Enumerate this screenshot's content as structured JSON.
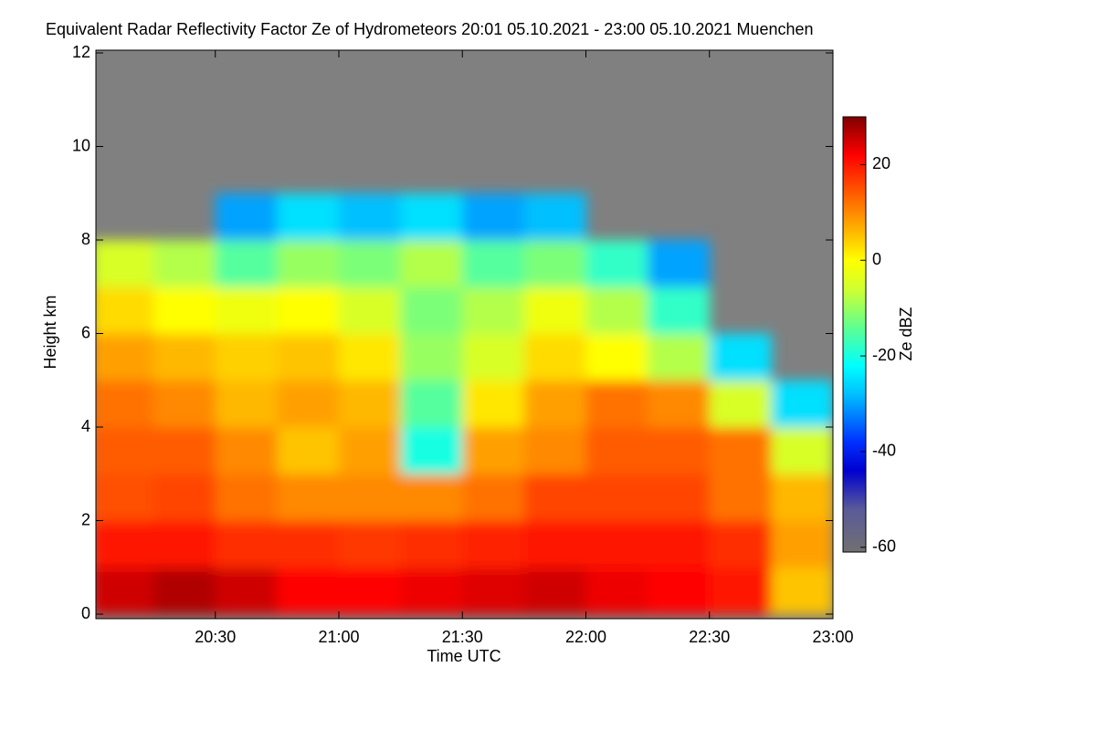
{
  "chart_data": {
    "type": "heatmap",
    "title": "Equivalent Radar Reflectivity Factor Ze of Hydrometeors   20:01 05.10.2021 - 23:00 05.10.2021 Muenchen",
    "x_label": "Time UTC",
    "y_label": "Height km",
    "colorbar_label": "Ze dBZ",
    "xlim": [
      20.0167,
      23
    ],
    "xticks": [
      {
        "value": 20.5,
        "label": "20:30"
      },
      {
        "value": 21,
        "label": "21:00"
      },
      {
        "value": 21.5,
        "label": "21:30"
      },
      {
        "value": 22,
        "label": "22:00"
      },
      {
        "value": 22.5,
        "label": "22:30"
      },
      {
        "value": 23,
        "label": "23:00"
      }
    ],
    "ylim": [
      0,
      12
    ],
    "yticks": [
      0,
      2,
      4,
      6,
      8,
      10,
      12
    ],
    "zlim": [
      -61,
      30
    ],
    "zticks": [
      20,
      0,
      -20,
      -40,
      -60
    ],
    "background": "#808080",
    "colorscale": [
      [
        -61,
        "#707070"
      ],
      [
        -52,
        "#5a5a9a"
      ],
      [
        -44,
        "#0000d0"
      ],
      [
        -38,
        "#0030ff"
      ],
      [
        -28,
        "#00c0ff"
      ],
      [
        -22,
        "#00ffff"
      ],
      [
        -14,
        "#60ff90"
      ],
      [
        -6,
        "#d0ff30"
      ],
      [
        0,
        "#ffff00"
      ],
      [
        8,
        "#ffa000"
      ],
      [
        15,
        "#ff5000"
      ],
      [
        22,
        "#ff0000"
      ],
      [
        30,
        "#800000"
      ]
    ],
    "x_bins": [
      20,
      20.25,
      20.5,
      20.75,
      21,
      21.25,
      21.5,
      21.75,
      22,
      22.25,
      22.5,
      22.75,
      23
    ],
    "y_bins": [
      0,
      1,
      2,
      3,
      4,
      5,
      6,
      7,
      8,
      9,
      10,
      11,
      12
    ],
    "z": [
      [
        25,
        27,
        25,
        22,
        22,
        23,
        24,
        25,
        23,
        22,
        20,
        5
      ],
      [
        20,
        20,
        18,
        18,
        17,
        18,
        19,
        20,
        20,
        20,
        18,
        8
      ],
      [
        15,
        16,
        12,
        10,
        10,
        10,
        12,
        16,
        16,
        16,
        12,
        6
      ],
      [
        14,
        14,
        10,
        5,
        8,
        -20,
        8,
        10,
        14,
        14,
        12,
        -5
      ],
      [
        12,
        10,
        6,
        8,
        6,
        -15,
        2,
        8,
        12,
        10,
        -5,
        -25
      ],
      [
        8,
        6,
        4,
        5,
        2,
        -10,
        -5,
        3,
        0,
        -8,
        -25,
        null
      ],
      [
        3,
        0,
        -2,
        0,
        -5,
        -12,
        -8,
        -2,
        -8,
        -18,
        null,
        null
      ],
      [
        -5,
        -8,
        -15,
        -10,
        -12,
        -8,
        -15,
        -12,
        -18,
        -30,
        null,
        null
      ],
      [
        null,
        null,
        -30,
        -25,
        -28,
        -25,
        -30,
        -28,
        null,
        null,
        null,
        null
      ],
      [
        null,
        null,
        null,
        null,
        null,
        null,
        null,
        null,
        null,
        null,
        null,
        null
      ],
      [
        null,
        null,
        null,
        null,
        null,
        null,
        null,
        null,
        null,
        null,
        null,
        null
      ],
      [
        null,
        null,
        null,
        null,
        null,
        null,
        null,
        null,
        null,
        null,
        null,
        null
      ]
    ]
  }
}
